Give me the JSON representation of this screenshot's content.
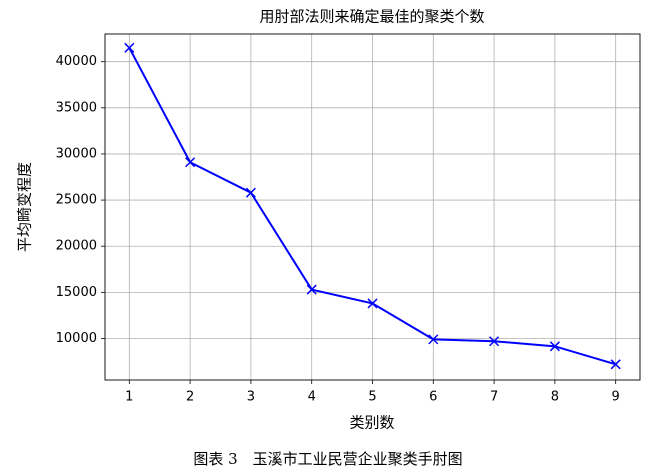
{
  "chart_data": {
    "type": "line",
    "title": "用肘部法则来确定最佳的聚类个数",
    "x_label": "类别数",
    "y_label": "平均畸变程度",
    "caption": "图表 3　玉溪市工业民营企业聚类手肘图",
    "x": [
      1,
      2,
      3,
      4,
      5,
      6,
      7,
      8,
      9
    ],
    "values": [
      41500,
      29100,
      25800,
      15300,
      13800,
      9900,
      9700,
      9150,
      7200
    ],
    "color": "#0000ff",
    "marker": "x",
    "xlim": [
      0.6,
      9.4
    ],
    "xticks": [
      1,
      2,
      3,
      4,
      5,
      6,
      7,
      8,
      9
    ],
    "ylim": [
      5500,
      43000
    ],
    "yticks": [
      10000,
      15000,
      20000,
      25000,
      30000,
      35000,
      40000
    ],
    "grid": true
  }
}
